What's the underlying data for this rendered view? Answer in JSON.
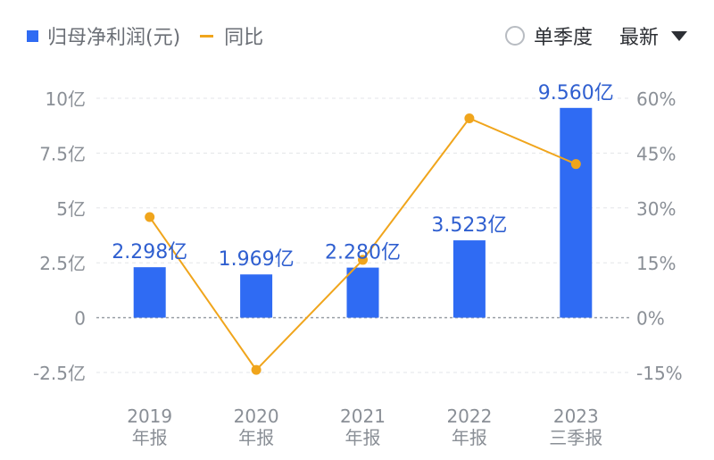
{
  "legend": {
    "bar_label": "归母净利润(元)",
    "line_label": "同比"
  },
  "controls": {
    "single_quarter_label": "单季度",
    "single_quarter_checked": false,
    "sort_label": "最新"
  },
  "colors": {
    "bar": "#2f6bf3",
    "line": "#f0a51c",
    "data_label": "#2f5fd0",
    "axis_text": "#8a8f96"
  },
  "chart_data": {
    "type": "bar",
    "categories": [
      "2019\n年报",
      "2020\n年报",
      "2021\n年报",
      "2022\n年报",
      "2023\n三季报"
    ],
    "series": [
      {
        "name": "归母净利润(元)",
        "type": "bar",
        "axis": "left",
        "values": [
          2.298,
          1.969,
          2.28,
          3.523,
          9.56
        ],
        "labels": [
          "2.298亿",
          "1.969亿",
          "2.280亿",
          "3.523亿",
          "9.560亿"
        ]
      },
      {
        "name": "同比",
        "type": "line",
        "axis": "right",
        "values": [
          27.5,
          -14.3,
          15.8,
          54.5,
          42.0
        ]
      }
    ],
    "left_axis": {
      "ticks": [
        10,
        7.5,
        5,
        2.5,
        0,
        -2.5
      ],
      "tick_labels": [
        "10亿",
        "7.5亿",
        "5亿",
        "2.5亿",
        "0",
        "-2.5亿"
      ],
      "ylim": [
        -2.5,
        10
      ]
    },
    "right_axis": {
      "ticks": [
        60,
        45,
        30,
        15,
        0,
        -15
      ],
      "tick_labels": [
        "60%",
        "45%",
        "30%",
        "15%",
        "0%",
        "-15%"
      ],
      "ylim": [
        -15,
        60
      ]
    },
    "grid": true,
    "legend_position": "top-left"
  }
}
